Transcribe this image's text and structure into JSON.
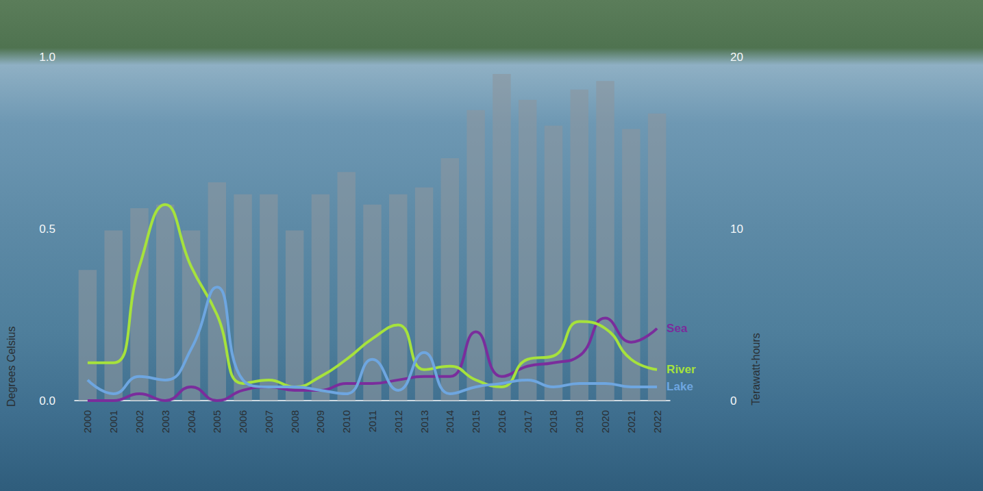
{
  "chart_data": {
    "type": "bar",
    "categories": [
      "2000",
      "2001",
      "2002",
      "2003",
      "2004",
      "2005",
      "2006",
      "2007",
      "2008",
      "2009",
      "2010",
      "2011",
      "2012",
      "2013",
      "2014",
      "2015",
      "2016",
      "2017",
      "2018",
      "2019",
      "2020",
      "2021",
      "2022"
    ],
    "ylabel": "Degrees Celsius",
    "y2label": "Terawatt-hours",
    "ylim": [
      0,
      1
    ],
    "yticks": [
      {
        "value": 0,
        "label": "0.0"
      },
      {
        "value": 0.5,
        "label": "0.5"
      },
      {
        "value": 1,
        "label": "1.0"
      }
    ],
    "y2lim": [
      0,
      20
    ],
    "y2ticks": [
      0,
      10,
      20
    ],
    "grid": false,
    "series": [
      {
        "type": "bar",
        "axis": "y2",
        "color": "#8c969e",
        "values": [
          7.6,
          9.9,
          11.2,
          11.4,
          9.9,
          12.7,
          12.0,
          12.0,
          9.9,
          12.0,
          13.3,
          11.4,
          12.0,
          12.4,
          14.1,
          16.9,
          19.0,
          17.5,
          16.0,
          18.1,
          18.6,
          15.8,
          16.7
        ]
      },
      {
        "type": "line",
        "name": "Sea",
        "color": "#7a2d9c",
        "values": [
          0.0,
          0.0,
          0.02,
          0.0,
          0.04,
          0.0,
          0.03,
          0.04,
          0.03,
          0.03,
          0.05,
          0.05,
          0.06,
          0.07,
          0.07,
          0.2,
          0.07,
          0.1,
          0.11,
          0.13,
          0.24,
          0.17,
          0.21
        ]
      },
      {
        "type": "line",
        "name": "River",
        "color": "#a6e23c",
        "values": [
          0.11,
          0.11,
          0.39,
          0.57,
          0.39,
          0.25,
          0.05,
          0.06,
          0.04,
          0.07,
          0.12,
          0.18,
          0.22,
          0.09,
          0.1,
          0.06,
          0.04,
          0.12,
          0.13,
          0.23,
          0.21,
          0.12,
          0.09
        ]
      },
      {
        "type": "line",
        "name": "Lake",
        "color": "#6ea6e0",
        "values": [
          0.06,
          0.02,
          0.07,
          0.06,
          0.15,
          0.33,
          0.06,
          0.04,
          0.04,
          0.03,
          0.02,
          0.12,
          0.03,
          0.14,
          0.02,
          0.04,
          0.05,
          0.06,
          0.04,
          0.05,
          0.05,
          0.04,
          0.04
        ]
      }
    ]
  }
}
